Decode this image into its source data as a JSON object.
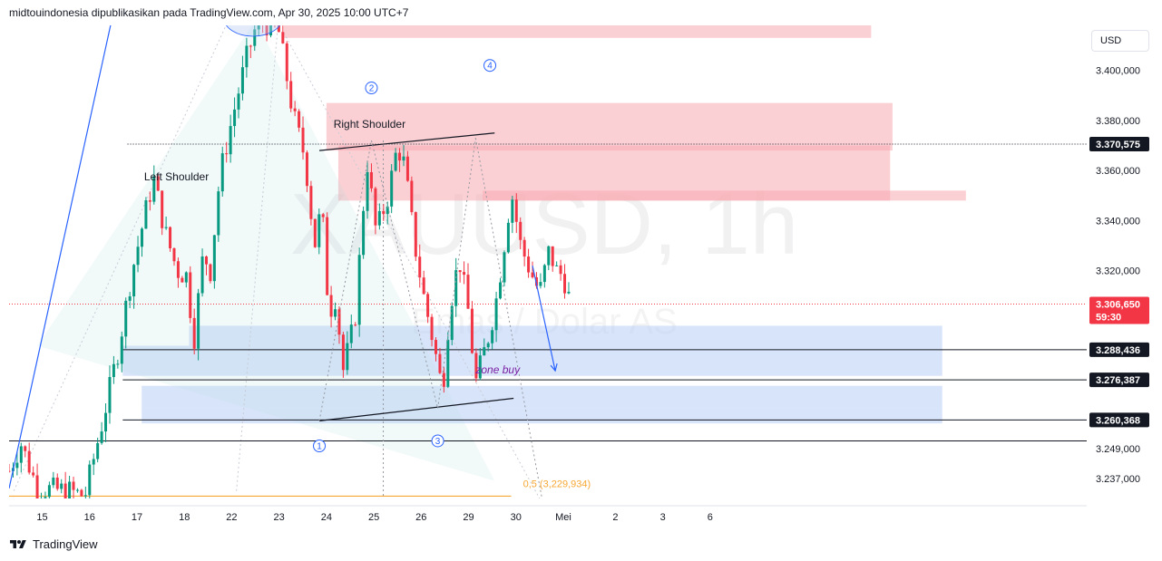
{
  "header": {
    "publisher": "midtouindonesia dipublikasikan pada TradingView.com, Apr 30, 2025 10:00 UTC+7"
  },
  "footer": {
    "brand": "TradingView"
  },
  "currency_label": "USD",
  "watermark": {
    "symbol": "XAUUSD, 1h",
    "name": "Emas / Dolar AS"
  },
  "colors": {
    "up": "#089981",
    "down": "#f23645",
    "supply": "#f7a9b1",
    "demand": "#b8cdf5",
    "fib": "#f7a834",
    "trend": "#2962ff"
  },
  "chart_data": {
    "type": "candlestick",
    "timeframe": "1h",
    "ylim": [
      3229,
      3418
    ],
    "xlim": [
      14.3,
      37.05
    ],
    "x_ticks": [
      {
        "x": 15,
        "label": "15"
      },
      {
        "x": 16,
        "label": "16"
      },
      {
        "x": 17,
        "label": "17"
      },
      {
        "x": 18,
        "label": "18"
      },
      {
        "x": 19,
        "label": "22"
      },
      {
        "x": 20,
        "label": "23"
      },
      {
        "x": 21,
        "label": "24"
      },
      {
        "x": 22,
        "label": "25"
      },
      {
        "x": 23,
        "label": "26"
      },
      {
        "x": 24,
        "label": "29"
      },
      {
        "x": 25,
        "label": "30"
      },
      {
        "x": 26,
        "label": "Mei"
      },
      {
        "x": 27.1,
        "label": "2"
      },
      {
        "x": 28.1,
        "label": "3"
      },
      {
        "x": 29.1,
        "label": "6"
      }
    ],
    "y_ticks": [
      {
        "v": 3400,
        "label": "3.400,000"
      },
      {
        "v": 3380,
        "label": "3.380,000"
      },
      {
        "v": 3360,
        "label": "3.360,000"
      },
      {
        "v": 3340,
        "label": "3.340,000"
      },
      {
        "v": 3320,
        "label": "3.320,000"
      },
      {
        "v": 3249,
        "label": "3.249,000"
      },
      {
        "v": 3237,
        "label": "3.237,000"
      }
    ],
    "price_labels": [
      {
        "v": 3370.575,
        "label": "3.370,575",
        "bg": "#131722"
      },
      {
        "v": 3288.436,
        "label": "3.288,436",
        "bg": "#131722"
      },
      {
        "v": 3276.387,
        "label": "3.276,387",
        "bg": "#131722"
      },
      {
        "v": 3260.368,
        "label": "3.260,368",
        "bg": "#131722"
      }
    ],
    "current_price": {
      "v": 3306.65,
      "label": "3.306,650",
      "countdown": "59:30",
      "bg": "#f23645"
    },
    "path": [
      [
        14.3,
        3240
      ],
      [
        14.55,
        3251
      ],
      [
        14.9,
        3233
      ],
      [
        15.55,
        3232
      ],
      [
        15.9,
        3230
      ],
      [
        16.3,
        3262
      ],
      [
        16.6,
        3288
      ],
      [
        16.9,
        3320
      ],
      [
        17.2,
        3345
      ],
      [
        17.35,
        3357
      ],
      [
        17.6,
        3335
      ],
      [
        17.85,
        3320
      ],
      [
        18.05,
        3318
      ],
      [
        18.2,
        3292
      ],
      [
        18.4,
        3327
      ],
      [
        18.55,
        3320
      ],
      [
        18.75,
        3358
      ],
      [
        19.0,
        3380
      ],
      [
        19.3,
        3404
      ],
      [
        19.55,
        3420
      ],
      [
        19.8,
        3418
      ],
      [
        20.0,
        3415
      ],
      [
        20.3,
        3382
      ],
      [
        20.55,
        3365
      ],
      [
        20.75,
        3330
      ],
      [
        20.9,
        3346
      ],
      [
        21.05,
        3303
      ],
      [
        21.2,
        3310
      ],
      [
        21.35,
        3280
      ],
      [
        21.6,
        3300
      ],
      [
        21.75,
        3338
      ],
      [
        21.85,
        3365
      ],
      [
        22.05,
        3335
      ],
      [
        22.3,
        3350
      ],
      [
        22.5,
        3370
      ],
      [
        22.65,
        3362
      ],
      [
        22.85,
        3332
      ],
      [
        23.05,
        3310
      ],
      [
        23.25,
        3292
      ],
      [
        23.45,
        3272
      ],
      [
        23.6,
        3305
      ],
      [
        23.8,
        3325
      ],
      [
        24.0,
        3303
      ],
      [
        24.15,
        3275
      ],
      [
        24.45,
        3296
      ],
      [
        24.6,
        3310
      ],
      [
        24.8,
        3337
      ],
      [
        24.9,
        3352
      ],
      [
        25.1,
        3330
      ],
      [
        25.3,
        3320
      ],
      [
        25.5,
        3311
      ],
      [
        25.7,
        3328
      ],
      [
        25.85,
        3320
      ],
      [
        26.0,
        3318
      ],
      [
        26.15,
        3307
      ]
    ],
    "zones": [
      {
        "kind": "supply",
        "x0": 20.1,
        "x1": 32.5,
        "y0": 3413,
        "y1": 3421
      },
      {
        "kind": "supply",
        "x0": 21.0,
        "x1": 32.95,
        "y0": 3368,
        "y1": 3387
      },
      {
        "kind": "supply",
        "x0": 21.25,
        "x1": 32.9,
        "y0": 3348,
        "y1": 3370
      },
      {
        "kind": "supply",
        "x0": 24.3,
        "x1": 34.5,
        "y0": 3348,
        "y1": 3352
      },
      {
        "kind": "demand",
        "x0": 18.1,
        "x1": 34.0,
        "y0": 3290,
        "y1": 3298
      },
      {
        "kind": "demand",
        "x0": 16.7,
        "x1": 34.0,
        "y0": 3278,
        "y1": 3290
      },
      {
        "kind": "demand",
        "x0": 17.1,
        "x1": 34.0,
        "y0": 3265,
        "y1": 3274
      },
      {
        "kind": "demand",
        "x0": 17.1,
        "x1": 34.0,
        "y0": 3259,
        "y1": 3265
      }
    ],
    "annotations": [
      {
        "text": "Left Shoulder",
        "x": 17.15,
        "y": 3356
      },
      {
        "text": "Right Shoulder",
        "x": 21.15,
        "y": 3377
      },
      {
        "text": "zone buy",
        "x": 24.15,
        "y": 3279
      }
    ],
    "waves": [
      {
        "label": "1",
        "x": 20.85,
        "y": 3250
      },
      {
        "label": "2",
        "x": 21.95,
        "y": 3393
      },
      {
        "label": "3",
        "x": 23.35,
        "y": 3252
      },
      {
        "label": "4",
        "x": 24.45,
        "y": 3402
      }
    ],
    "fib": {
      "label": "0,5 (3,229,934)",
      "v": 3229.934
    }
  }
}
